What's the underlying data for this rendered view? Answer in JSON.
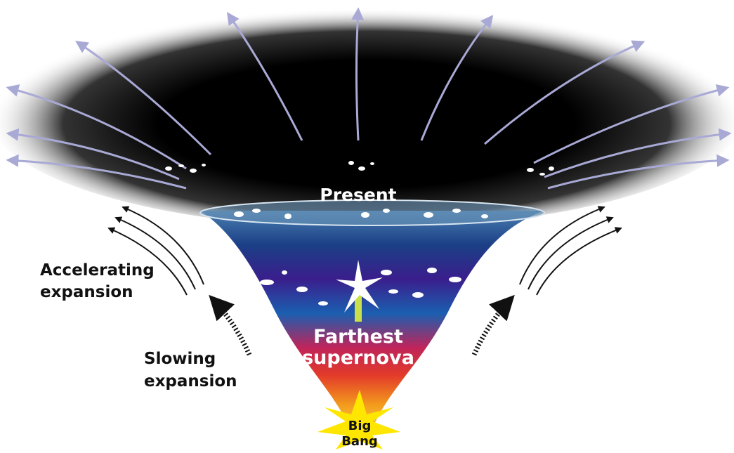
{
  "labels": {
    "present": "Present",
    "accelerating": [
      "Accelerating",
      "expansion"
    ],
    "slowing": [
      "Slowing",
      "expansion"
    ],
    "supernova": [
      "Farthest",
      "supernova"
    ],
    "big_bang": [
      "Big",
      "Bang"
    ]
  }
}
